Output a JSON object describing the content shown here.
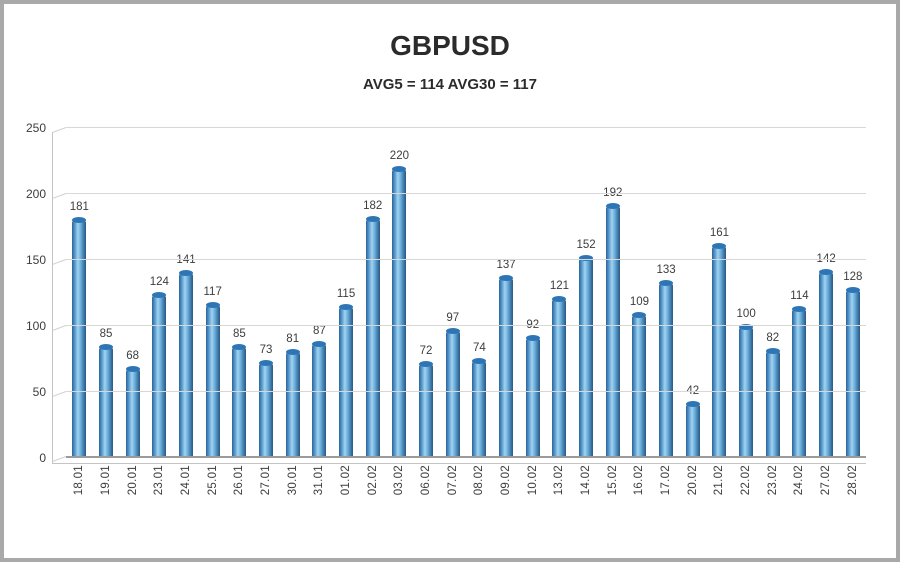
{
  "header": {
    "title": "GBPUSD",
    "subtitle": "AVG5 = 114 AVG30 = 117"
  },
  "chart_data": {
    "type": "bar",
    "title": "GBPUSD",
    "subtitle": "AVG5 = 114 AVG30 = 117",
    "categories": [
      "18.01",
      "19.01",
      "20.01",
      "23.01",
      "24.01",
      "25.01",
      "26.01",
      "27.01",
      "30.01",
      "31.01",
      "01.02",
      "02.02",
      "03.02",
      "06.02",
      "07.02",
      "08.02",
      "09.02",
      "10.02",
      "13.02",
      "14.02",
      "15.02",
      "16.02",
      "17.02",
      "20.02",
      "21.02",
      "22.02",
      "23.02",
      "24.02",
      "27.02",
      "28.02"
    ],
    "values": [
      181,
      85,
      68,
      124,
      141,
      117,
      85,
      73,
      81,
      87,
      115,
      182,
      220,
      72,
      97,
      74,
      137,
      92,
      121,
      152,
      192,
      109,
      133,
      42,
      161,
      100,
      82,
      114,
      142,
      128
    ],
    "xlabel": "",
    "ylabel": "",
    "ylim": [
      0,
      250
    ],
    "yticks": [
      0,
      50,
      100,
      150,
      200,
      250
    ],
    "grid": true,
    "legend": false,
    "style_3d": true,
    "bar_color": "#5b9bd5",
    "bar_highlight": "#a2d2f0",
    "bar_edge": "#2f6496",
    "bar_cap_color": "#2e75b6",
    "gridline_color": "#d8d8d8",
    "text_color": "#3d3d3d",
    "frame_color": "#a9a9a9"
  }
}
